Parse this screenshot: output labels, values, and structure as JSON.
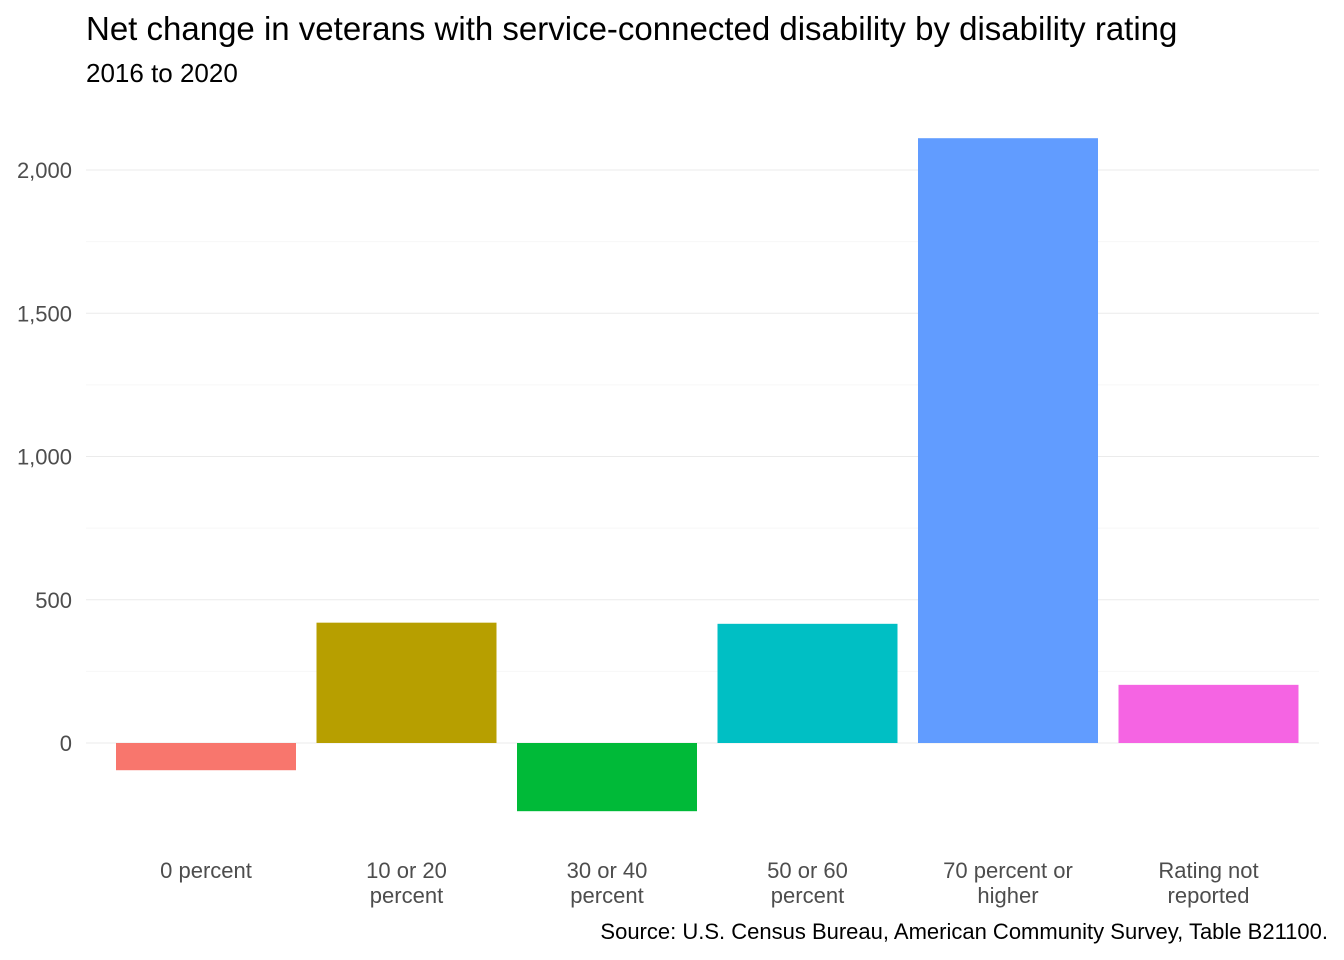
{
  "chart_data": {
    "type": "bar",
    "title": "Net change in veterans with service-connected disability by disability rating",
    "subtitle": "2016 to 2020",
    "caption": "Source: U.S. Census Bureau, American Community Survey, Table B21100.",
    "xlabel": "",
    "ylabel": "",
    "categories": [
      [
        "0 percent"
      ],
      [
        "10 or 20",
        "percent"
      ],
      [
        "30 or 40",
        "percent"
      ],
      [
        "50 or 60",
        "percent"
      ],
      [
        "70 percent or",
        "higher"
      ],
      [
        "Rating not",
        "reported"
      ]
    ],
    "values": [
      -95,
      420,
      -238,
      416,
      2111,
      203
    ],
    "colors": [
      "#F8766D",
      "#B79F00",
      "#00BA38",
      "#00BFC4",
      "#619CFF",
      "#F564E3"
    ],
    "yticks": [
      0,
      500,
      1000,
      1500,
      2000
    ],
    "ytick_labels": [
      "0",
      "500",
      "1,000",
      "1,500",
      "2,000"
    ],
    "ylim": [
      -300,
      2150
    ],
    "grid": true,
    "legend": "none"
  }
}
